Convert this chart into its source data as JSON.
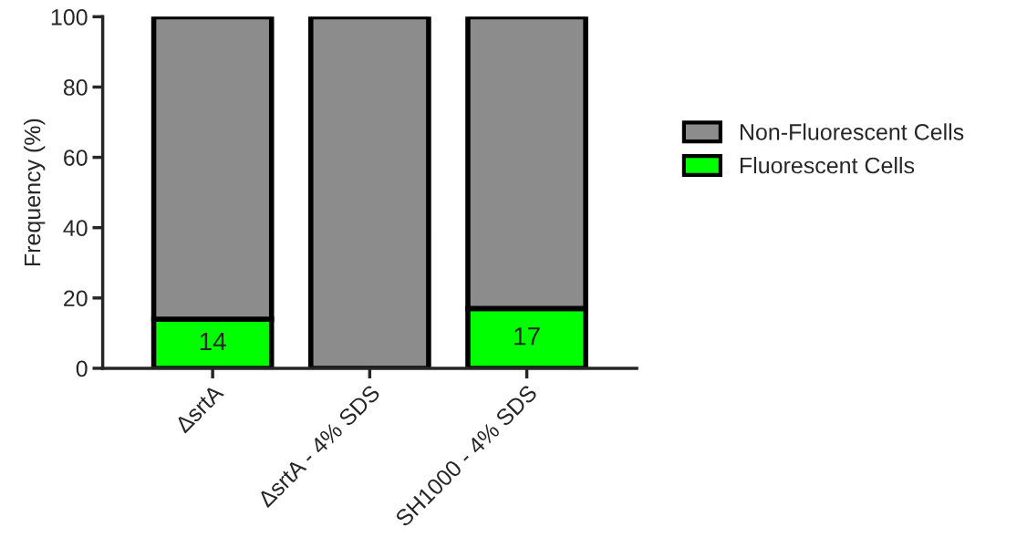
{
  "chart_data": {
    "type": "bar",
    "stacked": true,
    "ylabel": "Frequency (%)",
    "categories": [
      "ΔsrtA",
      "ΔsrtA - 4% SDS",
      "SH1000 - 4% SDS"
    ],
    "series": [
      {
        "name": "Fluorescent Cells",
        "color": "#00ff00",
        "values": [
          14,
          0,
          17
        ],
        "value_labels": [
          "14",
          null,
          "17"
        ]
      },
      {
        "name": "Non-Fluorescent Cells",
        "color": "#8c8c8c",
        "values": [
          86,
          100,
          83
        ]
      }
    ],
    "ylim": [
      0,
      100
    ],
    "yticks": [
      0,
      20,
      40,
      60,
      80,
      100
    ],
    "grid": false,
    "legend": "right"
  }
}
